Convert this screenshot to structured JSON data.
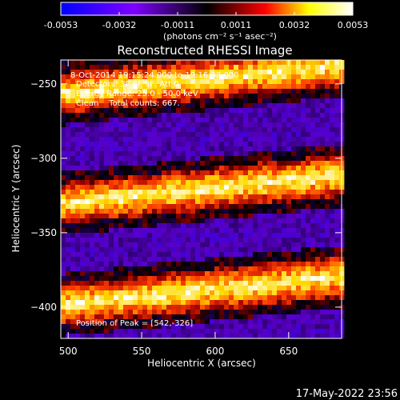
{
  "colorbar": {
    "ticks": [
      "-0.0053",
      "-0.0032",
      "-0.0011",
      "0.0011",
      "0.0032",
      "0.0053"
    ],
    "units_label": "(photons cm⁻² s⁻¹ asec⁻²)",
    "colors": [
      "#0000ff",
      "#7f00ff",
      "#000000",
      "#ff0000",
      "#ffff00",
      "#ffffff"
    ]
  },
  "chart_data": {
    "type": "heatmap",
    "title": "Reconstructed RHESSI Image",
    "xlabel": "Heliocentric X (arcsec)",
    "ylabel": "Heliocentric Y (arcsec)",
    "xlim": [
      495,
      686
    ],
    "ylim": [
      -421,
      -234
    ],
    "x_ticks": [
      500,
      550,
      600,
      650
    ],
    "y_ticks": [
      -250,
      -300,
      -350,
      -400
    ],
    "bands": [
      {
        "name": "bright",
        "y_center": -252,
        "slope": 0.1,
        "half_width": 14
      },
      {
        "name": "bright",
        "y_center": -326,
        "slope": 0.1,
        "half_width": 14
      },
      {
        "name": "bright",
        "y_center": -394,
        "slope": 0.1,
        "half_width": 14
      }
    ],
    "peak": {
      "x": 542,
      "y": -326
    }
  },
  "annotations": [
    "8-Oct-2014 19:15:24.000 to 19:16:08.000",
    "Detectors: 3F 6F 9F, Att 0",
    "Energy Range: 25.0 - 50.0 keV",
    "Clean    Total counts: 667."
  ],
  "peak_label": "Position of Peak = [542,-326]",
  "timestamp": "17-May-2022 23:56"
}
